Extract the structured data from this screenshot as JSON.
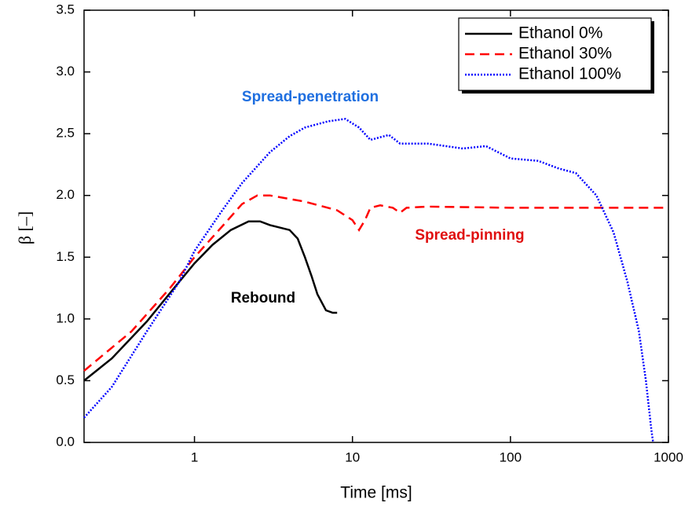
{
  "chart_data": {
    "type": "line",
    "x_label": "Time [ms]",
    "y_label": "β [–]",
    "xscale": "log",
    "xlim": [
      0.2,
      1000
    ],
    "xticks": [
      1,
      10,
      100,
      1000
    ],
    "ylim": [
      0,
      3.5
    ],
    "yticks": [
      {
        "value": 0,
        "label": "0.0"
      },
      0.5,
      {
        "value": 1,
        "label": "1.0"
      },
      1.5,
      {
        "value": 2,
        "label": "2.0"
      },
      2.5,
      {
        "value": 3,
        "label": "3.0"
      },
      3.5
    ],
    "legend": "upper right",
    "series": [
      {
        "name": "Ethanol 0%",
        "color": "#000000",
        "line_style": "solid",
        "x": [
          0.2,
          0.3,
          0.5,
          0.8,
          1,
          1.3,
          1.7,
          2.2,
          2.6,
          3,
          4,
          4.5,
          5,
          5.5,
          6,
          6.8,
          7.5,
          8
        ],
        "values": [
          0.5,
          0.68,
          0.98,
          1.3,
          1.45,
          1.6,
          1.72,
          1.79,
          1.79,
          1.76,
          1.72,
          1.65,
          1.5,
          1.35,
          1.2,
          1.07,
          1.05,
          1.05
        ]
      },
      {
        "name": "Ethanol 30%",
        "color": "#ff0000",
        "line_style": "dashed",
        "x": [
          0.2,
          0.4,
          0.7,
          1,
          1.5,
          2,
          2.5,
          3,
          5,
          8,
          10,
          11,
          12,
          13,
          15,
          18,
          20,
          22,
          30,
          100,
          1000
        ],
        "values": [
          0.58,
          0.9,
          1.25,
          1.5,
          1.75,
          1.93,
          2.0,
          2.0,
          1.95,
          1.88,
          1.8,
          1.72,
          1.8,
          1.9,
          1.92,
          1.9,
          1.86,
          1.9,
          1.91,
          1.9,
          1.9
        ]
      },
      {
        "name": "Ethanol 100%",
        "color": "#0000ff",
        "line_style": "dotted",
        "x": [
          0.2,
          0.3,
          0.5,
          0.8,
          1,
          1.5,
          2,
          3,
          4,
          5,
          7,
          9,
          11,
          13,
          17,
          20,
          30,
          50,
          70,
          100,
          150,
          200,
          260,
          350,
          450,
          550,
          650,
          720,
          780,
          800
        ],
        "values": [
          0.2,
          0.45,
          0.9,
          1.3,
          1.55,
          1.88,
          2.1,
          2.35,
          2.48,
          2.55,
          2.6,
          2.62,
          2.55,
          2.45,
          2.49,
          2.42,
          2.42,
          2.38,
          2.4,
          2.3,
          2.28,
          2.22,
          2.18,
          2.0,
          1.7,
          1.3,
          0.9,
          0.5,
          0.1,
          0
        ]
      }
    ],
    "annotations": [
      {
        "text": "Spread-penetration",
        "color": "#1f6fe0"
      },
      {
        "text": "Spread-pinning",
        "color": "#e01010"
      },
      {
        "text": "Rebound",
        "color": "#000000"
      }
    ]
  }
}
